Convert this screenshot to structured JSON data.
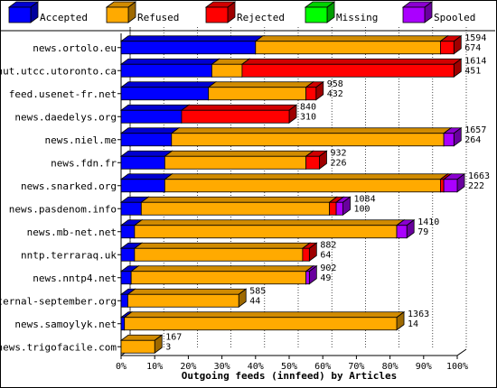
{
  "colors": {
    "accepted": "#0000ff",
    "refused": "#ffaa00",
    "rejected": "#ff0000",
    "missing": "#00ff00",
    "spooled": "#aa00ff"
  },
  "legend": [
    {
      "key": "accepted",
      "label": "Accepted"
    },
    {
      "key": "refused",
      "label": "Refused"
    },
    {
      "key": "rejected",
      "label": "Rejected"
    },
    {
      "key": "missing",
      "label": "Missing"
    },
    {
      "key": "spooled",
      "label": "Spooled"
    }
  ],
  "chart_data": {
    "type": "bar",
    "orientation": "horizontal",
    "stacked": "percent",
    "xlabel": "Outgoing feeds (innfeed) by Articles",
    "xlim": [
      0,
      100
    ],
    "x_ticks": [
      "0%",
      "10%",
      "20%",
      "30%",
      "40%",
      "50%",
      "60%",
      "70%",
      "80%",
      "90%",
      "100%"
    ],
    "legend_position": "top",
    "series_order": [
      "accepted",
      "refused",
      "rejected",
      "missing",
      "spooled"
    ],
    "rows": [
      {
        "label": "news.ortolo.eu",
        "total": "1594",
        "second": "674",
        "accepted": 40,
        "refused": 55,
        "rejected": 4,
        "missing": 0,
        "spooled": 0
      },
      {
        "label": "nut.utcc.utoronto.ca",
        "total": "1614",
        "second": "451",
        "accepted": 27,
        "refused": 9,
        "rejected": 63,
        "missing": 0,
        "spooled": 0
      },
      {
        "label": "feed.usenet-fr.net",
        "total": "958",
        "second": "432",
        "accepted": 26,
        "refused": 29,
        "rejected": 3,
        "missing": 0,
        "spooled": 0
      },
      {
        "label": "news.daedelys.org",
        "total": "840",
        "second": "310",
        "accepted": 18,
        "refused": 0,
        "rejected": 32,
        "missing": 0,
        "spooled": 0
      },
      {
        "label": "news.niel.me",
        "total": "1657",
        "second": "264",
        "accepted": 15,
        "refused": 81,
        "rejected": 0,
        "missing": 0,
        "spooled": 3
      },
      {
        "label": "news.fdn.fr",
        "total": "932",
        "second": "226",
        "accepted": 13,
        "refused": 42,
        "rejected": 4,
        "missing": 0,
        "spooled": 0
      },
      {
        "label": "news.snarked.org",
        "total": "1663",
        "second": "222",
        "accepted": 13,
        "refused": 82,
        "rejected": 1,
        "missing": 0,
        "spooled": 4
      },
      {
        "label": "news.pasdenom.info",
        "total": "1084",
        "second": "100",
        "accepted": 6,
        "refused": 56,
        "rejected": 2,
        "missing": 0,
        "spooled": 2
      },
      {
        "label": "news.mb-net.net",
        "total": "1410",
        "second": "79",
        "accepted": 4,
        "refused": 78,
        "rejected": 0,
        "missing": 0,
        "spooled": 3
      },
      {
        "label": "nntp.terraraq.uk",
        "total": "882",
        "second": "64",
        "accepted": 4,
        "refused": 50,
        "rejected": 2,
        "missing": 0,
        "spooled": 0
      },
      {
        "label": "news.nntp4.net",
        "total": "902",
        "second": "49",
        "accepted": 3,
        "refused": 52,
        "rejected": 0,
        "missing": 0,
        "spooled": 1
      },
      {
        "label": "eternal-september.org",
        "total": "585",
        "second": "44",
        "accepted": 2,
        "refused": 33,
        "rejected": 0,
        "missing": 0,
        "spooled": 0
      },
      {
        "label": "news.samoylyk.net",
        "total": "1363",
        "second": "14",
        "accepted": 1,
        "refused": 81,
        "rejected": 0,
        "missing": 0,
        "spooled": 0
      },
      {
        "label": "news.trigofacile.com",
        "total": "167",
        "second": "3",
        "accepted": 0,
        "refused": 10,
        "rejected": 0,
        "missing": 0,
        "spooled": 0
      }
    ]
  }
}
